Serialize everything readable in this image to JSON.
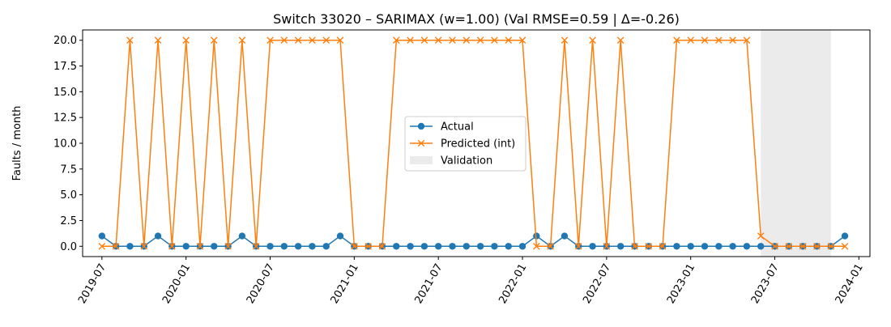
{
  "chart_data": {
    "type": "line",
    "title": "Switch 33020 – SARIMAX (w=1.00) (Val RMSE=0.59 | Δ=-0.26)",
    "xlabel": "",
    "ylabel": "Faults / month",
    "x_start": "2019-07",
    "x_step": "month",
    "xlim": [
      "2019-05-20",
      "2024-01-25"
    ],
    "ylim": [
      -1.0,
      21.0
    ],
    "x_ticks": [
      "2019-07",
      "2020-01",
      "2020-07",
      "2021-01",
      "2021-07",
      "2022-01",
      "2022-07",
      "2023-01",
      "2023-07",
      "2024-01"
    ],
    "y_ticks": [
      0.0,
      2.5,
      5.0,
      7.5,
      10.0,
      12.5,
      15.0,
      17.5,
      20.0
    ],
    "y_tick_labels": [
      "0.0",
      "2.5",
      "5.0",
      "7.5",
      "10.0",
      "12.5",
      "15.0",
      "17.5",
      "20.0"
    ],
    "validation": {
      "start": "2023-06",
      "end": "2023-11"
    },
    "series": [
      {
        "name": "Actual",
        "color": "#1f77b4",
        "marker": "circle",
        "values": [
          1,
          0,
          0,
          0,
          1,
          0,
          0,
          0,
          0,
          0,
          1,
          0,
          0,
          0,
          0,
          0,
          0,
          1,
          0,
          0,
          0,
          0,
          0,
          0,
          0,
          0,
          0,
          0,
          0,
          0,
          0,
          1,
          0,
          1,
          0,
          0,
          0,
          0,
          0,
          0,
          0,
          0,
          0,
          0,
          0,
          0,
          0,
          0,
          0,
          0,
          0,
          0,
          0,
          1
        ]
      },
      {
        "name": "Predicted (int)",
        "color": "#ff7f0e",
        "marker": "x",
        "values": [
          0,
          0,
          20,
          0,
          20,
          0,
          20,
          0,
          20,
          0,
          20,
          0,
          20,
          20,
          20,
          20,
          20,
          20,
          0,
          0,
          0,
          20,
          20,
          20,
          20,
          20,
          20,
          20,
          20,
          20,
          20,
          0,
          0,
          20,
          0,
          20,
          0,
          20,
          0,
          0,
          0,
          20,
          20,
          20,
          20,
          20,
          20,
          1,
          0,
          0,
          0,
          0,
          0,
          0
        ]
      }
    ],
    "legend": {
      "position": "center",
      "entries": [
        "Actual",
        "Predicted (int)",
        "Validation"
      ],
      "validation_color": "#d3d3d3"
    }
  }
}
